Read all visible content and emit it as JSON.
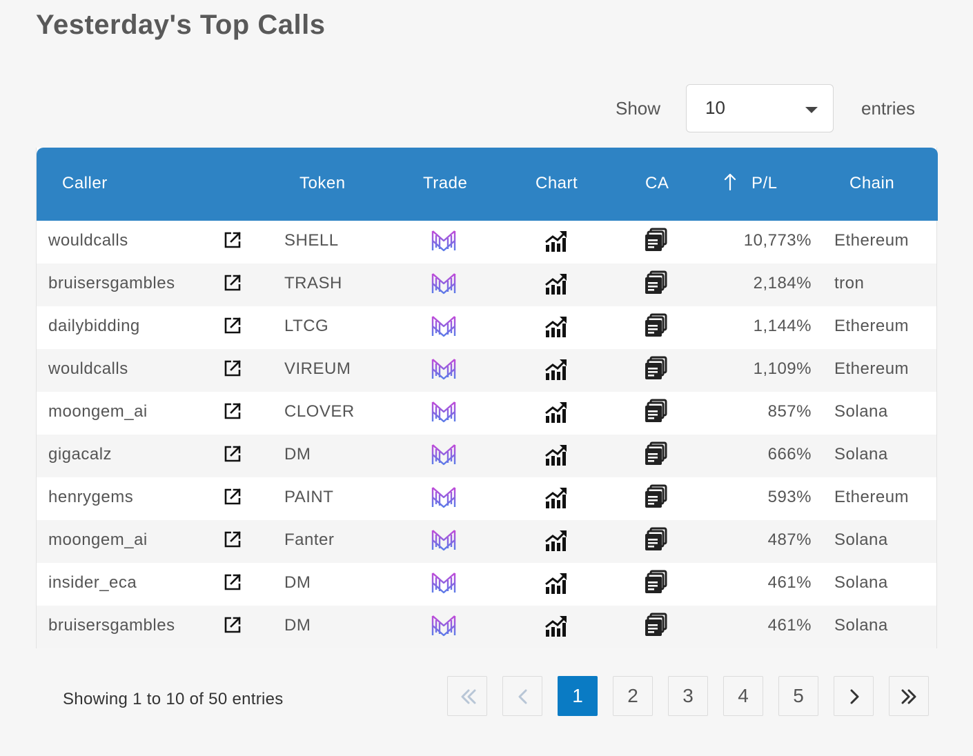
{
  "page": {
    "title": "Yesterday's Top Calls"
  },
  "length": {
    "show_label": "Show",
    "value": "10",
    "entries_label": "entries"
  },
  "columns": {
    "caller": "Caller",
    "token": "Token",
    "trade": "Trade",
    "chart": "Chart",
    "ca": "CA",
    "pl": "P/L",
    "chain": "Chain"
  },
  "colors": {
    "header": "#2e83c4",
    "active_page": "#0a7bc4"
  },
  "icons": {
    "external": "external-link-icon",
    "trade": "trade-logo-icon",
    "chart": "chart-growth-icon",
    "ca": "copy-icon",
    "sort": "sort-up-arrow-icon"
  },
  "rows": [
    {
      "caller": "wouldcalls",
      "token": "SHELL",
      "pl": "10,773%",
      "chain": "Ethereum"
    },
    {
      "caller": "bruisersgambles",
      "token": "TRASH",
      "pl": "2,184%",
      "chain": "tron"
    },
    {
      "caller": "dailybidding",
      "token": "LTCG",
      "pl": "1,144%",
      "chain": "Ethereum"
    },
    {
      "caller": "wouldcalls",
      "token": "VIREUM",
      "pl": "1,109%",
      "chain": "Ethereum"
    },
    {
      "caller": "moongem_ai",
      "token": "CLOVER",
      "pl": "857%",
      "chain": "Solana"
    },
    {
      "caller": "gigacalz",
      "token": "DM",
      "pl": "666%",
      "chain": "Solana"
    },
    {
      "caller": "henrygems",
      "token": "PAINT",
      "pl": "593%",
      "chain": "Ethereum"
    },
    {
      "caller": "moongem_ai",
      "token": "Fanter",
      "pl": "487%",
      "chain": "Solana"
    },
    {
      "caller": "insider_eca",
      "token": "DM",
      "pl": "461%",
      "chain": "Solana"
    },
    {
      "caller": "bruisersgambles",
      "token": "DM",
      "pl": "461%",
      "chain": "Solana"
    }
  ],
  "footer": {
    "info": "Showing 1 to 10 of 50 entries"
  },
  "pagination": {
    "pages": [
      "1",
      "2",
      "3",
      "4",
      "5"
    ],
    "current": "1"
  }
}
